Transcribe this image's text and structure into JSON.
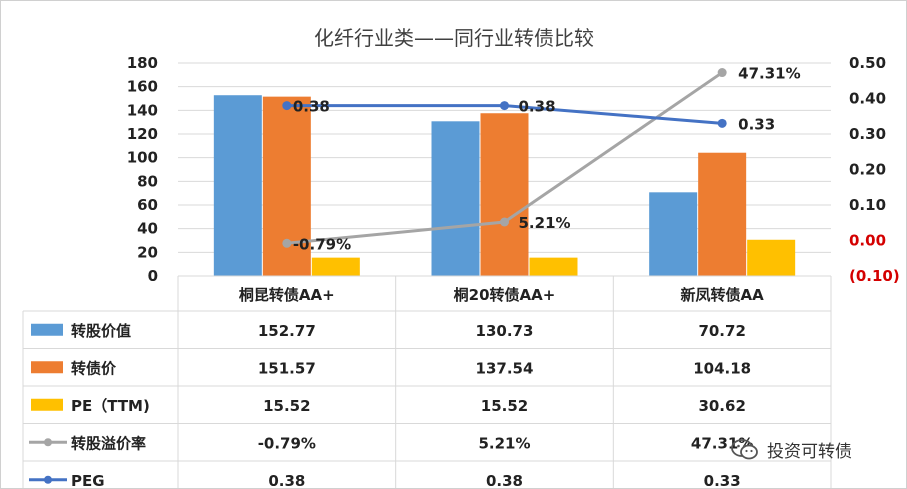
{
  "chart_data": {
    "type": "bar",
    "title": "化纤行业类——同行业转债比较",
    "categories": [
      "桐昆转债AA+",
      "桐20转债AA+",
      "新凤转债AA"
    ],
    "bar_series": [
      {
        "name": "转股价值",
        "color": "#5b9bd5",
        "values": [
          152.77,
          130.73,
          70.72
        ],
        "display": [
          "152.77",
          "130.73",
          "70.72"
        ]
      },
      {
        "name": "转债价",
        "color": "#ed7d31",
        "values": [
          151.57,
          137.54,
          104.18
        ],
        "display": [
          "151.57",
          "137.54",
          "104.18"
        ]
      },
      {
        "name": "PE（TTM)",
        "color": "#ffc000",
        "values": [
          15.52,
          15.52,
          30.62
        ],
        "display": [
          "15.52",
          "15.52",
          "30.62"
        ]
      }
    ],
    "line_series": [
      {
        "name": "转股溢价率",
        "color": "#a5a5a5",
        "axis": "right",
        "values": [
          -0.0079,
          0.0521,
          0.4731
        ],
        "display": [
          "-0.79%",
          "5.21%",
          "47.31%"
        ]
      },
      {
        "name": "PEG",
        "color": "#4472c4",
        "axis": "right",
        "values": [
          0.38,
          0.38,
          0.33
        ],
        "display": [
          "0.38",
          "0.38",
          "0.33"
        ]
      }
    ],
    "y_left": {
      "ylim": [
        0,
        180
      ],
      "ticks": [
        "0",
        "20",
        "40",
        "60",
        "80",
        "100",
        "120",
        "140",
        "160",
        "180"
      ]
    },
    "y_right": {
      "ylim": [
        -0.1,
        0.5
      ],
      "ticks": [
        "(0.10)",
        "0.00",
        "0.10",
        "0.20",
        "0.30",
        "0.40",
        "0.50"
      ]
    },
    "grid": true,
    "legend": "data-table"
  },
  "watermark": {
    "text": "投资可转债",
    "icon": "wechat-icon"
  }
}
